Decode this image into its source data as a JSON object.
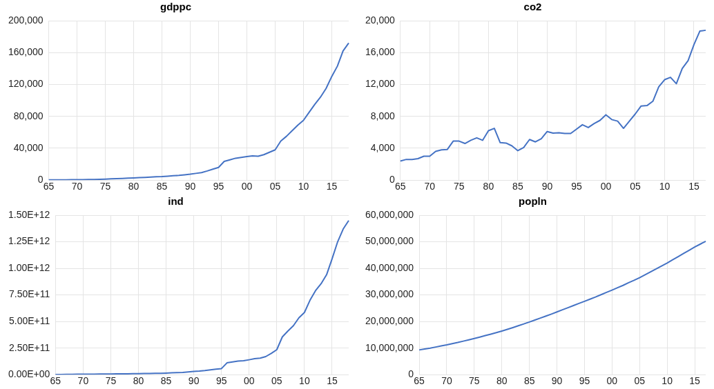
{
  "chart_data": [
    {
      "type": "line",
      "title": "gdppc",
      "categories": [
        "65",
        null,
        null,
        null,
        null,
        "70",
        null,
        null,
        null,
        null,
        "75",
        null,
        null,
        null,
        null,
        "80",
        null,
        null,
        null,
        null,
        "85",
        null,
        null,
        null,
        null,
        "90",
        null,
        null,
        null,
        null,
        "95",
        null,
        null,
        null,
        null,
        "00",
        null,
        null,
        null,
        null,
        "05",
        null,
        null,
        null,
        null,
        "10",
        null,
        null,
        null,
        null,
        "15",
        null,
        null,
        null
      ],
      "series": [
        {
          "color": "#4472c4",
          "values": [
            300,
            350,
            400,
            450,
            500,
            550,
            650,
            750,
            900,
            1100,
            1300,
            1600,
            2000,
            2200,
            2500,
            2800,
            3100,
            3500,
            3900,
            4200,
            4500,
            5000,
            5500,
            6000,
            6700,
            7500,
            8500,
            9500,
            11500,
            13800,
            16000,
            23500,
            25500,
            27500,
            28500,
            29500,
            30500,
            30000,
            32000,
            35000,
            38000,
            49000,
            55000,
            62000,
            69000,
            75000,
            85000,
            95000,
            104000,
            115000,
            130000,
            143000,
            162000,
            172000
          ]
        }
      ],
      "ylim": [
        0,
        200000
      ],
      "yticks": [
        {
          "value": 0,
          "label": "0"
        },
        {
          "value": 40000,
          "label": "40,000"
        },
        {
          "value": 80000,
          "label": "80,000"
        },
        {
          "value": 120000,
          "label": "120,000"
        },
        {
          "value": 160000,
          "label": "160,000"
        },
        {
          "value": 200000,
          "label": "200,000"
        }
      ],
      "grid": true,
      "legend": false,
      "marker": "none",
      "line_style": "solid"
    },
    {
      "type": "line",
      "title": "co2",
      "categories": [
        "65",
        null,
        null,
        null,
        null,
        "70",
        null,
        null,
        null,
        null,
        "75",
        null,
        null,
        null,
        null,
        "80",
        null,
        null,
        null,
        null,
        "85",
        null,
        null,
        null,
        null,
        "90",
        null,
        null,
        null,
        null,
        "95",
        null,
        null,
        null,
        null,
        "00",
        null,
        null,
        null,
        null,
        "05",
        null,
        null,
        null,
        null,
        "10",
        null,
        null,
        null,
        null,
        "15",
        null,
        null
      ],
      "series": [
        {
          "color": "#4472c4",
          "values": [
            2400,
            2600,
            2600,
            2700,
            3000,
            3000,
            3600,
            3800,
            3850,
            4900,
            4900,
            4600,
            5000,
            5300,
            5000,
            6200,
            6500,
            4700,
            4650,
            4300,
            3700,
            4100,
            5100,
            4800,
            5200,
            6100,
            5900,
            5950,
            5850,
            5850,
            6400,
            6950,
            6600,
            7100,
            7500,
            8200,
            7600,
            7400,
            6500,
            7400,
            8300,
            9300,
            9350,
            9900,
            11700,
            12600,
            12900,
            12100,
            14000,
            15000,
            17000,
            18700,
            18800
          ]
        }
      ],
      "ylim": [
        0,
        20000
      ],
      "yticks": [
        {
          "value": 0,
          "label": "0"
        },
        {
          "value": 4000,
          "label": "4,000"
        },
        {
          "value": 8000,
          "label": "8,000"
        },
        {
          "value": 12000,
          "label": "12,000"
        },
        {
          "value": 16000,
          "label": "16,000"
        },
        {
          "value": 20000,
          "label": "20,000"
        }
      ],
      "grid": true,
      "legend": false,
      "marker": "none",
      "line_style": "solid"
    },
    {
      "type": "line",
      "title": "ind",
      "categories": [
        "65",
        null,
        null,
        null,
        null,
        "70",
        null,
        null,
        null,
        null,
        "75",
        null,
        null,
        null,
        null,
        "80",
        null,
        null,
        null,
        null,
        "85",
        null,
        null,
        null,
        null,
        "90",
        null,
        null,
        null,
        null,
        "95",
        null,
        null,
        null,
        null,
        "00",
        null,
        null,
        null,
        null,
        "05",
        null,
        null,
        null,
        null,
        "10",
        null,
        null,
        null,
        null,
        "15",
        null,
        null,
        null
      ],
      "series": [
        {
          "color": "#4472c4",
          "values": [
            2000000000,
            2000000000,
            3000000000,
            3000000000,
            4000000000,
            4000000000,
            4500000000,
            5000000000,
            5500000000,
            6000000000,
            6500000000,
            7000000000,
            7500000000,
            8500000000,
            9000000000,
            10000000000,
            11000000000,
            11500000000,
            12000000000,
            13000000000,
            15000000000,
            17000000000,
            19000000000,
            21000000000,
            25000000000,
            30000000000,
            33000000000,
            38000000000,
            45000000000,
            52000000000,
            57000000000,
            111000000000,
            120000000000,
            128000000000,
            131000000000,
            140000000000,
            150000000000,
            155000000000,
            170000000000,
            200000000000,
            235000000000,
            355000000000,
            410000000000,
            460000000000,
            535000000000,
            585000000000,
            700000000000,
            790000000000,
            855000000000,
            940000000000,
            1090000000000,
            1250000000000,
            1370000000000,
            1450000000000
          ]
        }
      ],
      "ylim": [
        0,
        1500000000000
      ],
      "yticks": [
        {
          "value": 0,
          "label": "0.00E+00"
        },
        {
          "value": 250000000000,
          "label": "2.50E+11"
        },
        {
          "value": 500000000000,
          "label": "5.00E+11"
        },
        {
          "value": 750000000000,
          "label": "7.50E+11"
        },
        {
          "value": 1000000000000,
          "label": "1.00E+12"
        },
        {
          "value": 1250000000000,
          "label": "1.25E+12"
        },
        {
          "value": 1500000000000,
          "label": "1.50E+12"
        }
      ],
      "grid": true,
      "legend": false,
      "marker": "none",
      "line_style": "solid"
    },
    {
      "type": "line",
      "title": "popln",
      "categories": [
        "65",
        null,
        null,
        null,
        null,
        "70",
        null,
        null,
        null,
        null,
        "75",
        null,
        null,
        null,
        null,
        "80",
        null,
        null,
        null,
        null,
        "85",
        null,
        null,
        null,
        null,
        "90",
        null,
        null,
        null,
        null,
        "95",
        null,
        null,
        null,
        null,
        "00",
        null,
        null,
        null,
        null,
        "05",
        null,
        null,
        null,
        null,
        "10",
        null,
        null,
        null,
        null,
        "15",
        null,
        null
      ],
      "series": [
        {
          "color": "#4472c4",
          "values": [
            9300000,
            9650000,
            10000000,
            10400000,
            10800000,
            11200000,
            11650000,
            12100000,
            12600000,
            13100000,
            13600000,
            14150000,
            14700000,
            15250000,
            15800000,
            16400000,
            17050000,
            17700000,
            18400000,
            19100000,
            19800000,
            20550000,
            21300000,
            22050000,
            22800000,
            23600000,
            24400000,
            25200000,
            26000000,
            26800000,
            27600000,
            28400000,
            29200000,
            30100000,
            30950000,
            31800000,
            32700000,
            33600000,
            34600000,
            35500000,
            36500000,
            37600000,
            38700000,
            39800000,
            40900000,
            42000000,
            43200000,
            44400000,
            45600000,
            46800000,
            48000000,
            49100000,
            50200000
          ]
        }
      ],
      "ylim": [
        0,
        60000000
      ],
      "yticks": [
        {
          "value": 0,
          "label": "0"
        },
        {
          "value": 10000000,
          "label": "10,000,000"
        },
        {
          "value": 20000000,
          "label": "20,000,000"
        },
        {
          "value": 30000000,
          "label": "30,000,000"
        },
        {
          "value": 40000000,
          "label": "40,000,000"
        },
        {
          "value": 50000000,
          "label": "50,000,000"
        },
        {
          "value": 60000000,
          "label": "60,000,000"
        }
      ],
      "grid": true,
      "legend": false,
      "marker": "none",
      "line_style": "solid"
    }
  ]
}
